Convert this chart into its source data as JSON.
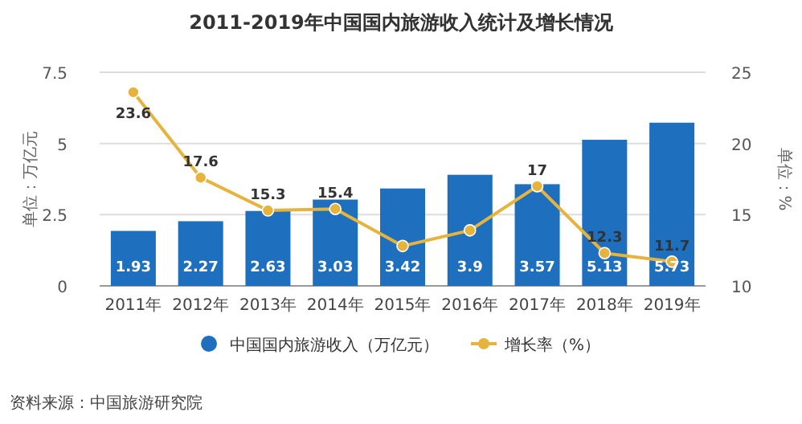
{
  "chart_data": {
    "type": "bar",
    "title": "2011-2019年中国国内旅游收入统计及增长情况",
    "ylabel": "单位：万亿元",
    "y2label": "单位：%",
    "categories": [
      "2011年",
      "2012年",
      "2013年",
      "2014年",
      "2015年",
      "2016年",
      "2017年",
      "2018年",
      "2019年"
    ],
    "series": [
      {
        "name": "中国国内旅游收入（万亿元）",
        "color": "#1f6fbf",
        "values": [
          1.93,
          2.27,
          2.63,
          3.03,
          3.42,
          3.9,
          3.57,
          5.13,
          5.73
        ],
        "value_labels": [
          "1.93",
          "2.27",
          "2.63",
          "3.03",
          "3.42",
          "3.9",
          "3.57",
          "5.13",
          "5.73"
        ]
      },
      {
        "name": "增长率（%）",
        "type": "line",
        "axis": "y2",
        "color": "#e6b43c",
        "marker": "circle",
        "values": [
          23.6,
          17.6,
          15.3,
          15.4,
          12.8,
          13.9,
          17,
          12.3,
          11.7
        ],
        "value_labels": [
          "23.6",
          "17.6",
          "15.3",
          "15.4",
          null,
          null,
          "17",
          "12.3",
          "11.7"
        ]
      }
    ],
    "ylim": [
      0,
      7.5
    ],
    "yticks": [
      0,
      2.5,
      5,
      7.5
    ],
    "y2lim": [
      10,
      25
    ],
    "y2ticks": [
      10,
      15,
      20,
      25
    ],
    "grid": "y",
    "legend": "bottom",
    "annotations": [
      "资料来源：中国旅游研究院"
    ]
  }
}
